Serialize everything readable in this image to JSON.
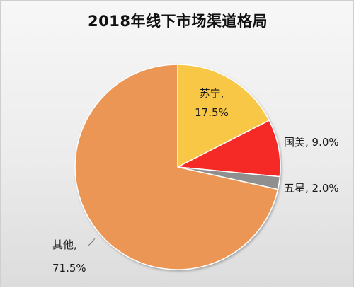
{
  "chart_data": {
    "type": "pie",
    "title": "2018年线下市场渠道格局",
    "slices": [
      {
        "name": "苏宁",
        "value": 17.5,
        "value_label": "17.5%",
        "color": "#f7c744"
      },
      {
        "name": "国美",
        "value": 9.0,
        "value_label": "9.0%",
        "color": "#f52a27"
      },
      {
        "name": "五星",
        "value": 2.0,
        "value_label": "2.0%",
        "color": "#8f8f8f"
      },
      {
        "name": "其他",
        "value": 71.5,
        "value_label": "71.5%",
        "color": "#ec9656"
      }
    ],
    "start": "12 o'clock",
    "direction": "clockwise",
    "legend": "none",
    "data_labels": "category name and percentage"
  }
}
